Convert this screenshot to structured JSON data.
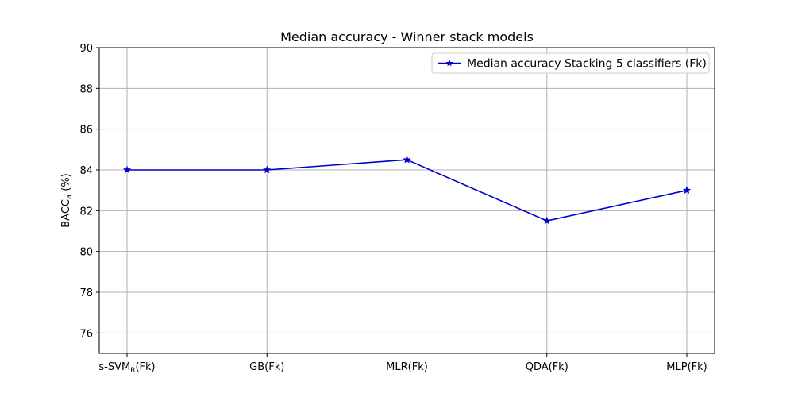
{
  "chart_data": {
    "type": "line",
    "title": "Median accuracy - Winner stack models",
    "xlabel": "",
    "ylabel": "BACC",
    "ylabel_subscript": "a",
    "ylabel_suffix": " (%)",
    "categories": [
      {
        "main": "s-SVM",
        "sub": "R",
        "rest": "(Fk)"
      },
      {
        "main": "GB(Fk)",
        "sub": "",
        "rest": ""
      },
      {
        "main": "MLR(Fk)",
        "sub": "",
        "rest": ""
      },
      {
        "main": "QDA(Fk)",
        "sub": "",
        "rest": ""
      },
      {
        "main": "MLP(Fk)",
        "sub": "",
        "rest": ""
      }
    ],
    "series": [
      {
        "name": "Median accuracy Stacking 5 classifiers (Fk)",
        "values": [
          84.0,
          84.0,
          84.5,
          81.5,
          83.0
        ],
        "color": "#0000cc",
        "marker": "star"
      }
    ],
    "ylim": [
      75,
      90
    ],
    "yticks": [
      76,
      78,
      80,
      82,
      84,
      86,
      88,
      90
    ],
    "grid": true,
    "legend_position": "top-right"
  }
}
